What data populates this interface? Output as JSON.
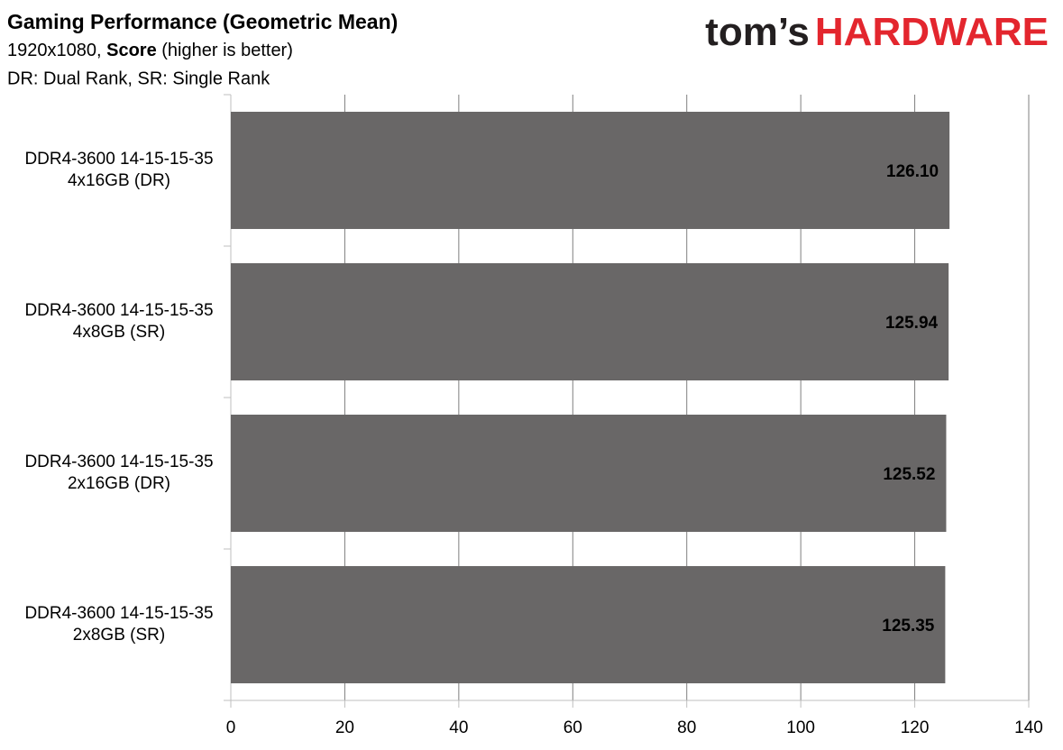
{
  "chart_data": {
    "type": "barh",
    "title": "Gaming Performance (Geometric Mean)",
    "subtitle": {
      "prefix": "1920x1080,",
      "emphasis": "Score",
      "suffix": "(higher is better)"
    },
    "note": "DR: Dual Rank, SR: Single Rank",
    "logo": {
      "prefix": "tom’s",
      "name": "HARDWARE"
    },
    "categories": [
      "DDR4-3600 14-15-15-35\n4x16GB (DR)",
      "DDR4-3600 14-15-15-35\n4x8GB (SR)",
      "DDR4-3600 14-15-15-35\n2x16GB (DR)",
      "DDR4-3600 14-15-15-35\n2x8GB (SR)"
    ],
    "values": [
      126.1,
      125.94,
      125.52,
      125.35
    ],
    "value_labels": [
      "126.10",
      "125.94",
      "125.52",
      "125.35"
    ],
    "color": "#696767",
    "xlim": [
      0,
      140
    ],
    "xticks": [
      0,
      20,
      40,
      60,
      80,
      100,
      120,
      140
    ],
    "grid": true
  }
}
